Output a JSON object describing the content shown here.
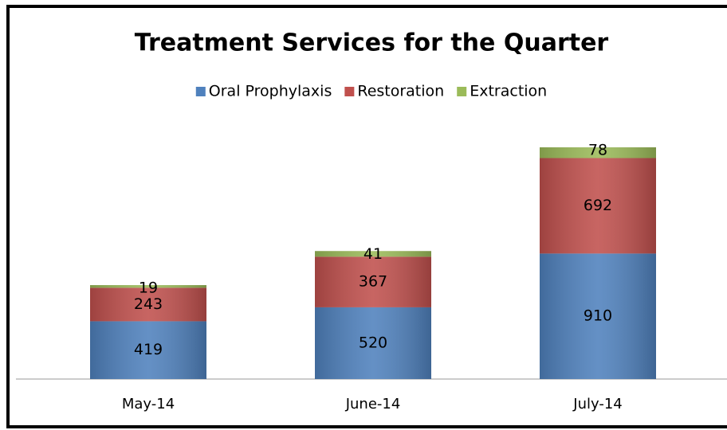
{
  "chart_data": {
    "type": "stacked_bar",
    "title": "Treatment Services for the Quarter",
    "categories": [
      "May-14",
      "June-14",
      "July-14"
    ],
    "series": [
      {
        "name": "Oral Prophylaxis",
        "color": "#4f81bd",
        "values": [
          419,
          520,
          910
        ]
      },
      {
        "name": "Restoration",
        "color": "#c0504d",
        "values": [
          243,
          367,
          692
        ]
      },
      {
        "name": "Extraction",
        "color": "#9bbb59",
        "values": [
          19,
          41,
          78
        ]
      }
    ],
    "legend": "top"
  }
}
